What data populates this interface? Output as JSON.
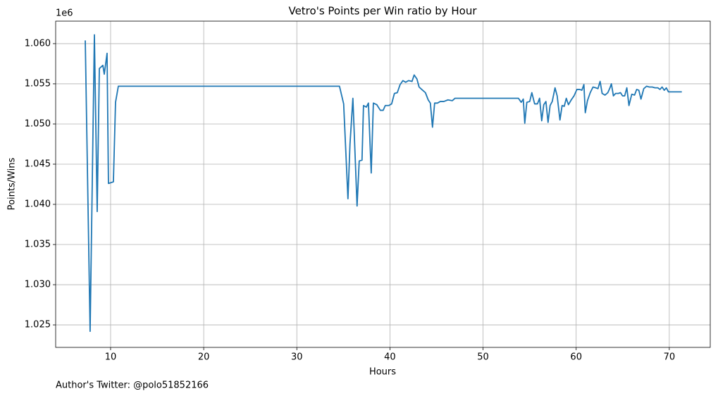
{
  "chart_data": {
    "type": "line",
    "title": "Vetro's Points per Win ratio by Hour",
    "xlabel": "Hours",
    "ylabel": "Points/Wins",
    "y_offset_label": "1e6",
    "annotation": "Author's Twitter: @polo51852166",
    "color": "#1f77b4",
    "grid": true,
    "xlim": [
      4.1,
      74.4
    ],
    "ylim": [
      1.0222,
      1.0628
    ],
    "xticks": [
      10,
      20,
      30,
      40,
      50,
      60,
      70
    ],
    "yticks": [
      1.025,
      {
        "value": 1.03,
        "label": "1.030"
      },
      1.035,
      {
        "value": 1.04,
        "label": "1.040"
      },
      1.045,
      {
        "value": 1.05,
        "label": "1.050"
      },
      1.055,
      {
        "value": 1.06,
        "label": "1.060"
      }
    ],
    "x": [
      7.28,
      7.8,
      8.26,
      8.56,
      8.79,
      9.17,
      9.32,
      9.62,
      9.77,
      10.3,
      10.53,
      10.83,
      34.58,
      35.03,
      35.49,
      35.71,
      36.02,
      36.47,
      36.7,
      37.0,
      37.16,
      37.46,
      37.69,
      37.99,
      38.22,
      38.59,
      38.97,
      39.27,
      39.5,
      39.88,
      40.18,
      40.48,
      40.79,
      41.09,
      41.39,
      41.69,
      42.0,
      42.37,
      42.6,
      42.9,
      43.13,
      43.51,
      43.81,
      44.11,
      44.34,
      44.57,
      44.8,
      45.1,
      45.4,
      45.78,
      46.23,
      46.69,
      46.99,
      53.8,
      54.1,
      54.32,
      54.48,
      54.7,
      55.01,
      55.24,
      55.54,
      55.84,
      56.07,
      56.3,
      56.52,
      56.75,
      56.98,
      57.2,
      57.43,
      57.73,
      57.96,
      58.26,
      58.49,
      58.72,
      58.94,
      59.17,
      59.47,
      59.77,
      60.08,
      60.38,
      60.61,
      60.83,
      60.98,
      61.21,
      61.51,
      61.81,
      62.11,
      62.34,
      62.57,
      62.79,
      63.1,
      63.4,
      63.63,
      63.78,
      64.0,
      64.23,
      64.53,
      64.76,
      64.98,
      65.21,
      65.44,
      65.67,
      65.97,
      66.27,
      66.5,
      66.73,
      66.96,
      67.26,
      67.56,
      67.86,
      68.17,
      68.47,
      68.77,
      69.0,
      69.23,
      69.46,
      69.68,
      69.91,
      71.35
    ],
    "values": [
      1.0604,
      1.0242,
      1.0611,
      1.0391,
      1.0569,
      1.0573,
      1.0562,
      1.0588,
      1.0426,
      1.0428,
      1.0527,
      1.0547,
      1.0547,
      1.0525,
      1.0407,
      1.0475,
      1.0532,
      1.0398,
      1.0454,
      1.0455,
      1.0523,
      1.0521,
      1.0526,
      1.0439,
      1.0526,
      1.0524,
      1.0517,
      1.0517,
      1.0523,
      1.0523,
      1.0525,
      1.0538,
      1.0539,
      1.0549,
      1.0554,
      1.0552,
      1.0554,
      1.0553,
      1.0561,
      1.0556,
      1.0546,
      1.0542,
      1.0539,
      1.053,
      1.0526,
      1.0496,
      1.0526,
      1.0526,
      1.0528,
      1.0528,
      1.053,
      1.0529,
      1.0532,
      1.0532,
      1.0527,
      1.0531,
      1.0501,
      1.0527,
      1.0528,
      1.0539,
      1.0525,
      1.0525,
      1.0532,
      1.0504,
      1.0524,
      1.0528,
      1.0502,
      1.0523,
      1.0528,
      1.0545,
      1.0535,
      1.0505,
      1.0523,
      1.0522,
      1.0532,
      1.0524,
      1.053,
      1.0535,
      1.0543,
      1.0543,
      1.0542,
      1.0549,
      1.0514,
      1.0529,
      1.0539,
      1.0546,
      1.0545,
      1.0544,
      1.0553,
      1.0538,
      1.0536,
      1.0539,
      1.0545,
      1.055,
      1.0535,
      1.0538,
      1.0538,
      1.0539,
      1.0535,
      1.0535,
      1.0545,
      1.0523,
      1.0537,
      1.0536,
      1.0543,
      1.0542,
      1.0531,
      1.0544,
      1.0547,
      1.0546,
      1.0546,
      1.0545,
      1.0545,
      1.0543,
      1.0546,
      1.0542,
      1.0545,
      1.054,
      1.054
    ]
  }
}
